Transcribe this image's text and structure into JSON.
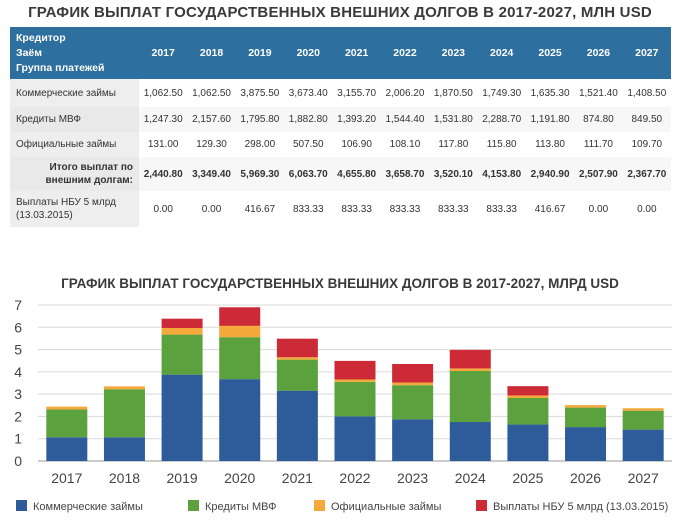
{
  "table": {
    "title": "ГРАФИК ВЫПЛАТ ГОСУДАРСТВЕННЫХ ВНЕШНИХ ДОЛГОВ В 2017-2027, МЛН USD",
    "header_lines": [
      "Кредитор",
      "Заём",
      "Группа платежей"
    ],
    "years": [
      "2017",
      "2018",
      "2019",
      "2020",
      "2021",
      "2022",
      "2023",
      "2024",
      "2025",
      "2026",
      "2027"
    ],
    "rows": [
      {
        "label": "Коммерческие займы",
        "values": [
          "1,062.50",
          "1,062.50",
          "3,875.50",
          "3,673.40",
          "3,155.70",
          "2,006.20",
          "1,870.50",
          "1,749.30",
          "1,635.30",
          "1,521.40",
          "1,408.50"
        ]
      },
      {
        "label": "Кредиты МВФ",
        "values": [
          "1,247.30",
          "2,157.60",
          "1,795.80",
          "1,882.80",
          "1,393.20",
          "1,544.40",
          "1,531.80",
          "2,288.70",
          "1,191.80",
          "874.80",
          "849.50"
        ]
      },
      {
        "label": "Официальные займы",
        "values": [
          "131.00",
          "129.30",
          "298.00",
          "507.50",
          "106.90",
          "108.10",
          "117.80",
          "115.80",
          "113.80",
          "111.70",
          "109.70"
        ]
      },
      {
        "label_lines": [
          "Итого выплат по",
          "внешним долгам:"
        ],
        "values": [
          "2,440.80",
          "3,349.40",
          "5,969.30",
          "6,063.70",
          "4,655.80",
          "3,658.70",
          "3,520.10",
          "4,153.80",
          "2,940.90",
          "2,507.90",
          "2,367.70"
        ]
      },
      {
        "label_lines": [
          "Выплаты НБУ 5 млрд",
          "(13.03.2015)"
        ],
        "values": [
          "0.00",
          "0.00",
          "416.67",
          "833.33",
          "833.33",
          "833.33",
          "833.33",
          "833.33",
          "416.67",
          "0.00",
          "0.00"
        ]
      }
    ]
  },
  "chart_title": "ГРАФИК ВЫПЛАТ ГОСУДАРСТВЕННЫХ ВНЕШНИХ ДОЛГОВ В 2017-2027, МЛРД USD",
  "chart_data": {
    "type": "bar",
    "stacked": true,
    "title": "ГРАФИК ВЫПЛАТ ГОСУДАРСТВЕННЫХ ВНЕШНИХ ДОЛГОВ В 2017-2027, МЛРД USD",
    "categories": [
      "2017",
      "2018",
      "2019",
      "2020",
      "2021",
      "2022",
      "2023",
      "2024",
      "2025",
      "2026",
      "2027"
    ],
    "series": [
      {
        "name": "Коммерческие займы",
        "color": "#2e5b9a",
        "values": [
          1.0625,
          1.0625,
          3.8755,
          3.6734,
          3.1557,
          2.0062,
          1.8705,
          1.7493,
          1.6353,
          1.5214,
          1.4085
        ]
      },
      {
        "name": "Кредиты МВФ",
        "color": "#5ba13e",
        "values": [
          1.2473,
          2.1576,
          1.7958,
          1.8828,
          1.3932,
          1.5444,
          1.5318,
          2.2887,
          1.1918,
          0.8748,
          0.8495
        ]
      },
      {
        "name": "Официальные займы",
        "color": "#f4a93a",
        "values": [
          0.131,
          0.1293,
          0.298,
          0.5075,
          0.1069,
          0.1081,
          0.1178,
          0.1158,
          0.1138,
          0.1117,
          0.1097
        ]
      },
      {
        "name": "Выплаты НБУ 5 млрд (13.03.2015)",
        "color": "#cc2a36",
        "values": [
          0,
          0,
          0.41667,
          0.83333,
          0.83333,
          0.83333,
          0.83333,
          0.83333,
          0.41667,
          0,
          0
        ]
      }
    ],
    "ylim": [
      0,
      7
    ],
    "yticks": [
      "0",
      "1",
      "2",
      "3",
      "4",
      "5",
      "6",
      "7"
    ],
    "grid": true,
    "legend_position": "bottom"
  }
}
